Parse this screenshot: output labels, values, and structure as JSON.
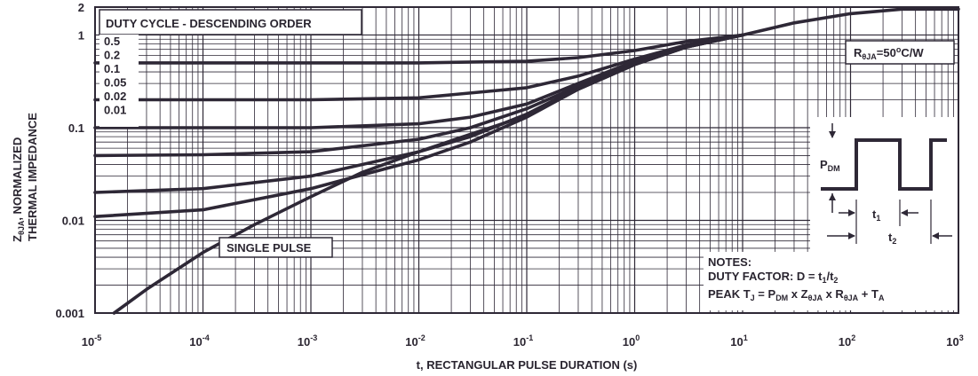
{
  "chart_data": {
    "type": "line",
    "title": "",
    "xlabel": "t, RECTANGULAR PULSE DURATION (s)",
    "ylabel_line1": "Z",
    "ylabel_sub": "θJA",
    "ylabel_rest": ", NORMALIZED",
    "ylabel_line2": "THERMAL IMPEDANCE",
    "x_scale": "log",
    "y_scale": "log",
    "xlim": [
      1e-05,
      1000
    ],
    "ylim": [
      0.001,
      2
    ],
    "grid": true,
    "x_ticks": [
      {
        "value": 1e-05,
        "base": "10",
        "exp": "-5"
      },
      {
        "value": 0.0001,
        "base": "10",
        "exp": "-4"
      },
      {
        "value": 0.001,
        "base": "10",
        "exp": "-3"
      },
      {
        "value": 0.01,
        "base": "10",
        "exp": "-2"
      },
      {
        "value": 0.1,
        "base": "10",
        "exp": "-1"
      },
      {
        "value": 1,
        "base": "10",
        "exp": "0"
      },
      {
        "value": 10,
        "base": "10",
        "exp": "1"
      },
      {
        "value": 100,
        "base": "10",
        "exp": "2"
      },
      {
        "value": 1000,
        "base": "10",
        "exp": "3"
      }
    ],
    "y_ticks": [
      {
        "value": 2,
        "label": "2"
      },
      {
        "value": 1,
        "label": "1"
      },
      {
        "value": 0.1,
        "label": "0.1"
      },
      {
        "value": 0.01,
        "label": "0.01"
      },
      {
        "value": 0.001,
        "label": "0.001"
      }
    ],
    "legend_title": "DUTY CYCLE - DESCENDING ORDER",
    "legend_items": [
      "0.5",
      "0.2",
      "0.1",
      "0.05",
      "0.02",
      "0.01"
    ],
    "series": [
      {
        "name": "0.5",
        "x": [
          1e-05,
          0.001,
          0.01,
          0.1,
          0.3,
          1,
          3,
          10,
          30,
          100,
          300,
          1000
        ],
        "y": [
          0.5,
          0.5,
          0.5,
          0.52,
          0.57,
          0.68,
          0.85,
          1.0,
          1.35,
          1.7,
          1.9,
          1.9
        ]
      },
      {
        "name": "0.2",
        "x": [
          1e-05,
          0.001,
          0.01,
          0.1,
          0.3,
          1,
          3,
          10
        ],
        "y": [
          0.2,
          0.2,
          0.21,
          0.27,
          0.36,
          0.55,
          0.78,
          1.0
        ]
      },
      {
        "name": "0.1",
        "x": [
          1e-05,
          0.001,
          0.01,
          0.03,
          0.1,
          0.3,
          1,
          3,
          10
        ],
        "y": [
          0.1,
          0.1,
          0.11,
          0.13,
          0.18,
          0.3,
          0.52,
          0.75,
          1.0
        ]
      },
      {
        "name": "0.05",
        "x": [
          1e-05,
          0.0001,
          0.001,
          0.01,
          0.03,
          0.1,
          0.3,
          1,
          3,
          10
        ],
        "y": [
          0.05,
          0.051,
          0.055,
          0.075,
          0.1,
          0.16,
          0.28,
          0.5,
          0.75,
          1.0
        ]
      },
      {
        "name": "0.02",
        "x": [
          1e-05,
          0.0001,
          0.001,
          0.01,
          0.03,
          0.1,
          0.3,
          1,
          3,
          10
        ],
        "y": [
          0.02,
          0.022,
          0.03,
          0.055,
          0.08,
          0.14,
          0.27,
          0.49,
          0.74,
          1.0
        ]
      },
      {
        "name": "0.01",
        "x": [
          1e-05,
          0.0001,
          0.001,
          0.01,
          0.03,
          0.1,
          0.3,
          1,
          3,
          10
        ],
        "y": [
          0.011,
          0.013,
          0.022,
          0.045,
          0.07,
          0.13,
          0.26,
          0.48,
          0.74,
          1.0
        ]
      },
      {
        "name": "SINGLE PULSE",
        "x": [
          1.5e-05,
          3e-05,
          0.0001,
          0.0003,
          0.001,
          0.003,
          0.01,
          0.03,
          0.1,
          0.3,
          1,
          3,
          10
        ],
        "y": [
          0.001,
          0.0018,
          0.0045,
          0.009,
          0.018,
          0.033,
          0.055,
          0.085,
          0.135,
          0.26,
          0.48,
          0.74,
          1.0
        ]
      }
    ],
    "annotations": {
      "single_pulse": "SINGLE PULSE",
      "rtheta_r": "R",
      "rtheta_sub": "θJA",
      "rtheta_rest": "=50",
      "rtheta_sup": "o",
      "rtheta_unit": "C/W",
      "notes_title": "NOTES:",
      "notes_duty": "DUTY FACTOR: D = t",
      "notes_duty_sub1": "1",
      "notes_duty_mid": "/t",
      "notes_duty_sub2": "2",
      "notes_peak_a": "PEAK T",
      "notes_peak_sub_j": "J",
      "notes_peak_b": " = P",
      "notes_peak_sub_dm": "DM",
      "notes_peak_c": " x Z",
      "notes_peak_sub_z": "θJA",
      "notes_peak_d": " x R",
      "notes_peak_sub_r": "θJA",
      "notes_peak_e": " + T",
      "notes_peak_sub_a": "A",
      "pdm_p": "P",
      "pdm_sub": "DM",
      "t1": "t",
      "t1_sub": "1",
      "t2": "t",
      "t2_sub": "2"
    },
    "line_color": "#2e2836",
    "grid_color": "#2e2836"
  }
}
